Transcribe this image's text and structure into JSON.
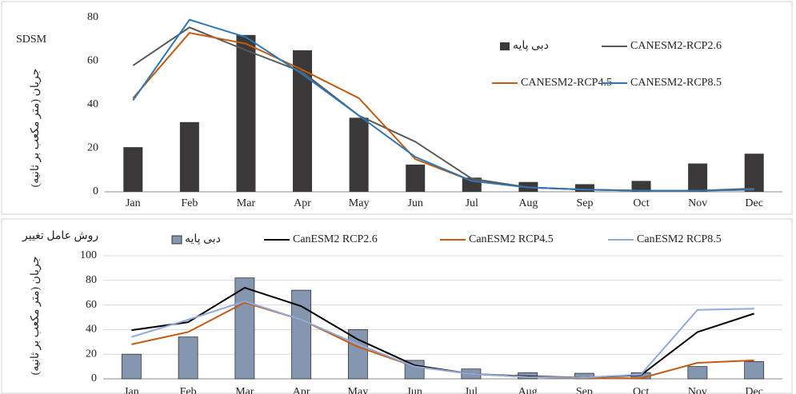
{
  "chart_data": [
    {
      "type": "bar_line",
      "title": "SDSM",
      "y_label": "جریان (متر مکعب بر ثانیه)",
      "categories": [
        "Jan",
        "Feb",
        "Mar",
        "Apr",
        "May",
        "Jun",
        "Jul",
        "Aug",
        "Sep",
        "Oct",
        "Nov",
        "Dec"
      ],
      "ylim": [
        0,
        80
      ],
      "yticks": [
        0,
        20,
        40,
        60,
        80
      ],
      "grid": false,
      "series": [
        {
          "name": "دبی پایه",
          "type": "bar",
          "color": "#3a3838",
          "values": [
            20.5,
            32,
            72,
            65,
            34,
            12.5,
            6.5,
            4.5,
            3.5,
            5,
            13,
            17.5
          ]
        },
        {
          "name": "CANESM2-RCP2.6",
          "type": "line",
          "color": "#595959",
          "values": [
            58,
            75.5,
            65,
            55,
            35,
            23,
            6,
            2,
            1,
            0.5,
            0.5,
            1.5
          ]
        },
        {
          "name": "CANESM2-RCP4.5",
          "type": "line",
          "color": "#c55a11",
          "values": [
            43,
            73,
            68,
            56,
            43,
            15,
            5,
            2,
            1,
            0.5,
            0.5,
            1
          ]
        },
        {
          "name": "CANESM2-RCP8.5",
          "type": "line",
          "color": "#2e75b6",
          "values": [
            42,
            79,
            71,
            54,
            35,
            16,
            5,
            2,
            1,
            0.5,
            0.5,
            1
          ]
        }
      ]
    },
    {
      "type": "bar_line",
      "title": "روش عامل تغییر",
      "y_label": "جریان (متر مکعب بر ثانیه)",
      "categories": [
        "Jan",
        "Feb",
        "Mar",
        "Apr",
        "May",
        "Jun",
        "Jul",
        "Aug",
        "Sep",
        "Oct",
        "Nov",
        "Dec"
      ],
      "ylim": [
        0,
        100
      ],
      "yticks": [
        0,
        20,
        40,
        60,
        80,
        100
      ],
      "grid": true,
      "series": [
        {
          "name": "دبی پایه",
          "type": "bar",
          "color": "#8496b0",
          "values": [
            20,
            34,
            82,
            72,
            40,
            15,
            8,
            5,
            4.5,
            5,
            10,
            14
          ]
        },
        {
          "name": "CanESM2 RCP2.6",
          "type": "line",
          "color": "#000000",
          "values": [
            39.5,
            46,
            74,
            59,
            32,
            11,
            4,
            2,
            1,
            3,
            38,
            53
          ]
        },
        {
          "name": "CanESM2 RCP4.5",
          "type": "line",
          "color": "#c55a11",
          "values": [
            28,
            38,
            62,
            48,
            26,
            10,
            4,
            1.5,
            0.5,
            0.5,
            13,
            15
          ]
        },
        {
          "name": "CanESM2 RCP8.5",
          "type": "line",
          "color": "#8faadc",
          "values": [
            34,
            48,
            63,
            48,
            28,
            10,
            4,
            1.5,
            1,
            3.5,
            56,
            57
          ]
        }
      ]
    }
  ]
}
